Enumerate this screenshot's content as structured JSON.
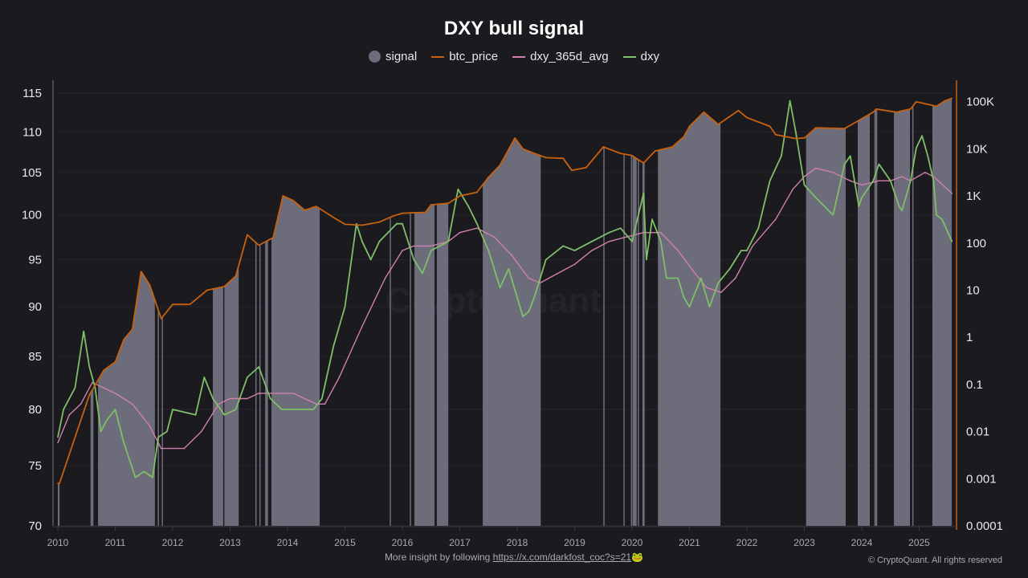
{
  "chart_data": {
    "type": "line",
    "title": "DXY bull signal",
    "legend": [
      {
        "name": "signal",
        "color": "#6d6c7a",
        "marker": "circle"
      },
      {
        "name": "btc_price",
        "color": "#c8610f",
        "marker": "line"
      },
      {
        "name": "dxy_365d_avg",
        "color": "#d27fae",
        "marker": "line"
      },
      {
        "name": "dxy",
        "color": "#7fbf6a",
        "marker": "line"
      }
    ],
    "legend_position": "top-center",
    "x_axis": {
      "range": [
        2010,
        2025.57
      ],
      "ticks": [
        "2010",
        "2011",
        "2012",
        "2013",
        "2014",
        "2015",
        "2016",
        "2017",
        "2018",
        "2019",
        "2020",
        "2021",
        "2022",
        "2023",
        "2024",
        "2025"
      ]
    },
    "y_left": {
      "scale": "log",
      "range": [
        70,
        115
      ],
      "ticks": [
        "115",
        "110",
        "105",
        "100",
        "95",
        "90",
        "85",
        "80",
        "75",
        "70"
      ]
    },
    "y_right": {
      "scale": "log",
      "range": [
        0.0001,
        100000
      ],
      "ticks": [
        "100K",
        "10K",
        "1K",
        "100",
        "10",
        "1",
        "0.1",
        "0.01",
        "0.001",
        "0.0001"
      ],
      "axis_color": "#c8610f"
    },
    "grid": true,
    "signal_intervals": [
      [
        2010.0,
        2010.03
      ],
      [
        2010.57,
        2010.62
      ],
      [
        2010.7,
        2011.69
      ],
      [
        2011.74,
        2011.76
      ],
      [
        2011.81,
        2011.83
      ],
      [
        2012.7,
        2012.88
      ],
      [
        2012.9,
        2013.15
      ],
      [
        2013.44,
        2013.46
      ],
      [
        2013.51,
        2013.53
      ],
      [
        2013.61,
        2013.66
      ],
      [
        2013.72,
        2014.56
      ],
      [
        2015.78,
        2015.8
      ],
      [
        2016.13,
        2016.15
      ],
      [
        2016.21,
        2016.56
      ],
      [
        2016.6,
        2016.8
      ],
      [
        2017.4,
        2018.41
      ],
      [
        2019.5,
        2019.52
      ],
      [
        2019.85,
        2019.87
      ],
      [
        2019.98,
        2020.0
      ],
      [
        2020.01,
        2020.08
      ],
      [
        2020.1,
        2020.11
      ],
      [
        2020.18,
        2020.22
      ],
      [
        2020.45,
        2021.54
      ],
      [
        2023.03,
        2023.72
      ],
      [
        2023.93,
        2024.14
      ],
      [
        2024.22,
        2024.27
      ],
      [
        2024.56,
        2024.84
      ],
      [
        2024.88,
        2024.9
      ],
      [
        2025.23,
        2025.57
      ]
    ],
    "series": [
      {
        "name": "btc_price",
        "axis": "right",
        "x": [
          2010.0,
          2010.03,
          2010.55,
          2010.8,
          2011.0,
          2011.15,
          2011.3,
          2011.45,
          2011.6,
          2011.8,
          2012.0,
          2012.3,
          2012.6,
          2012.9,
          2013.1,
          2013.3,
          2013.5,
          2013.75,
          2013.92,
          2014.1,
          2014.3,
          2014.5,
          2014.8,
          2015.0,
          2015.3,
          2015.6,
          2015.85,
          2016.0,
          2016.4,
          2016.5,
          2016.8,
          2017.0,
          2017.3,
          2017.5,
          2017.7,
          2017.96,
          2018.1,
          2018.3,
          2018.5,
          2018.8,
          2018.95,
          2019.2,
          2019.5,
          2019.8,
          2020.0,
          2020.2,
          2020.4,
          2020.7,
          2020.9,
          2021.0,
          2021.25,
          2021.5,
          2021.85,
          2022.0,
          2022.4,
          2022.5,
          2022.85,
          2023.0,
          2023.2,
          2023.7,
          2023.9,
          2024.2,
          2024.25,
          2024.6,
          2024.85,
          2024.95,
          2025.2,
          2025.3,
          2025.45,
          2025.57
        ],
        "values": [
          0.0008,
          0.0008,
          0.06,
          0.2,
          0.3,
          0.9,
          1.5,
          25,
          13,
          2.5,
          5,
          5,
          10,
          12,
          20,
          150,
          90,
          130,
          1000,
          800,
          500,
          600,
          350,
          250,
          240,
          280,
          380,
          430,
          450,
          650,
          700,
          1000,
          1200,
          2500,
          4500,
          17000,
          10000,
          8000,
          6500,
          6300,
          3500,
          4000,
          11000,
          8000,
          7200,
          5000,
          9000,
          11000,
          18000,
          30000,
          60000,
          33000,
          65000,
          46000,
          30000,
          20000,
          16500,
          17000,
          28000,
          27000,
          37000,
          60000,
          70000,
          60000,
          70000,
          100000,
          85000,
          80000,
          105000,
          118000
        ]
      },
      {
        "name": "dxy_365d_avg",
        "axis": "left",
        "x": [
          2010.0,
          2010.2,
          2010.4,
          2010.6,
          2010.8,
          2011.0,
          2011.3,
          2011.6,
          2011.8,
          2012.2,
          2012.5,
          2012.8,
          2013.0,
          2013.3,
          2013.5,
          2013.8,
          2014.1,
          2014.5,
          2014.65,
          2014.9,
          2015.3,
          2015.7,
          2016.0,
          2016.2,
          2016.5,
          2016.8,
          2017.0,
          2017.3,
          2017.6,
          2017.9,
          2018.2,
          2018.4,
          2018.7,
          2019.0,
          2019.3,
          2019.6,
          2019.9,
          2020.2,
          2020.5,
          2020.8,
          2021.1,
          2021.3,
          2021.55,
          2021.8,
          2022.1,
          2022.5,
          2022.8,
          2023.0,
          2023.2,
          2023.5,
          2023.8,
          2024.0,
          2024.3,
          2024.5,
          2024.7,
          2024.85,
          2025.1,
          2025.25,
          2025.57
        ],
        "values": [
          77,
          79.5,
          80.5,
          82.5,
          82,
          81.5,
          80.5,
          78.5,
          76.5,
          76.5,
          78,
          80.5,
          81,
          81,
          81.5,
          81.5,
          81.5,
          80.5,
          80.5,
          83,
          88,
          93,
          96,
          96.5,
          96.5,
          97,
          98,
          98.5,
          97.5,
          95.5,
          93,
          92.5,
          93.5,
          94.5,
          96,
          97,
          97.5,
          98,
          98,
          96,
          93.5,
          92,
          91.5,
          93,
          96.5,
          99.5,
          103,
          104.5,
          105.5,
          105,
          104,
          103.5,
          104,
          104,
          104.5,
          104,
          105,
          104.5,
          102.5
        ]
      },
      {
        "name": "dxy",
        "axis": "left",
        "x": [
          2010.0,
          2010.1,
          2010.3,
          2010.45,
          2010.55,
          2010.65,
          2010.75,
          2010.85,
          2011.0,
          2011.15,
          2011.35,
          2011.5,
          2011.65,
          2011.75,
          2011.9,
          2012.0,
          2012.4,
          2012.55,
          2012.7,
          2012.9,
          2013.1,
          2013.3,
          2013.5,
          2013.7,
          2013.9,
          2014.2,
          2014.45,
          2014.6,
          2014.8,
          2015.0,
          2015.2,
          2015.3,
          2015.45,
          2015.6,
          2015.9,
          2016.0,
          2016.2,
          2016.35,
          2016.5,
          2016.8,
          2016.97,
          2017.15,
          2017.3,
          2017.5,
          2017.7,
          2017.85,
          2018.1,
          2018.2,
          2018.3,
          2018.5,
          2018.8,
          2019.0,
          2019.3,
          2019.6,
          2019.8,
          2020.0,
          2020.2,
          2020.25,
          2020.35,
          2020.5,
          2020.6,
          2020.8,
          2020.9,
          2021.0,
          2021.2,
          2021.35,
          2021.5,
          2021.7,
          2021.9,
          2022.0,
          2022.2,
          2022.4,
          2022.6,
          2022.75,
          2022.85,
          2023.0,
          2023.2,
          2023.35,
          2023.5,
          2023.7,
          2023.8,
          2023.95,
          2024.0,
          2024.2,
          2024.3,
          2024.5,
          2024.65,
          2024.7,
          2024.85,
          2024.95,
          2025.05,
          2025.15,
          2025.25,
          2025.3,
          2025.4,
          2025.5,
          2025.57
        ],
        "values": [
          77.5,
          80,
          82,
          87.5,
          84,
          82,
          78,
          79,
          80,
          77,
          74,
          74.5,
          74,
          77.5,
          78,
          80,
          79.5,
          83,
          81,
          79.5,
          80,
          83,
          84,
          81,
          80,
          80,
          80,
          81,
          86,
          90,
          99,
          97,
          95,
          97,
          99,
          99,
          95,
          93.5,
          96,
          97,
          103,
          101,
          99,
          96,
          92,
          94,
          89,
          89.5,
          91,
          95,
          96.5,
          96,
          97,
          98,
          98.5,
          97,
          102.5,
          95,
          99.5,
          97,
          93,
          93,
          91,
          90,
          93,
          90,
          92.5,
          94,
          96,
          96,
          98.5,
          104,
          107,
          114,
          110,
          103.5,
          102,
          101,
          100,
          106,
          107,
          101,
          102,
          104,
          106,
          104,
          101,
          100.5,
          104,
          108,
          109.5,
          107,
          104,
          100,
          99.5,
          98,
          97
        ]
      }
    ]
  },
  "footer": {
    "text": "More insight by following ",
    "link": "https://x.com/darkfost_coc?s=21",
    "emoji": "🐸"
  },
  "copyright": "© CryptoQuant. All rights reserved",
  "watermark": "CryptoQuant"
}
